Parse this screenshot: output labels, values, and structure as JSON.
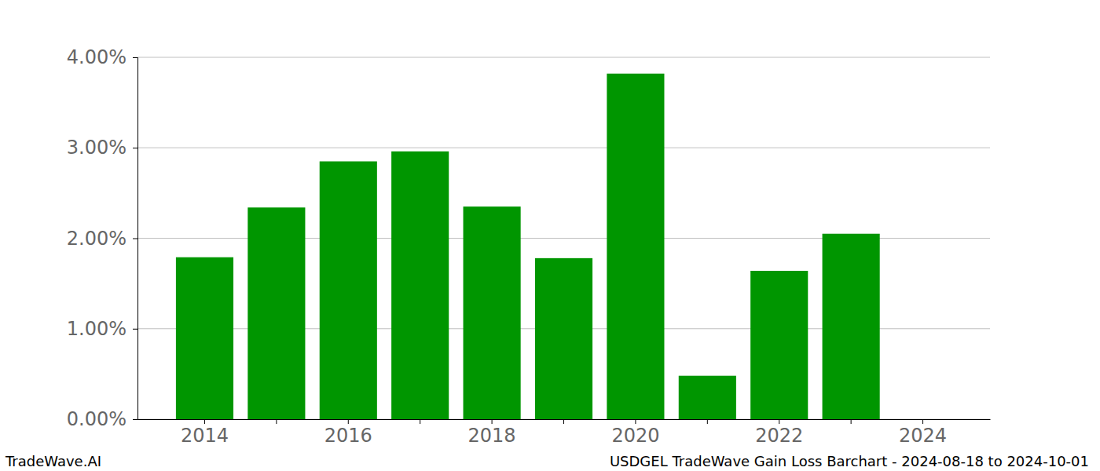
{
  "chart_data": {
    "type": "bar",
    "title": "USDGEL TradeWave Gain Loss Barchart - 2024-08-18 to 2024-10-01",
    "footer": "TradeWave.AI",
    "categories": [
      "2014",
      null,
      "2016",
      null,
      "2018",
      null,
      "2020",
      null,
      "2022",
      null,
      "2024"
    ],
    "values": [
      1.79,
      2.34,
      2.85,
      2.96,
      2.35,
      1.78,
      3.82,
      0.48,
      1.64,
      2.05,
      0
    ],
    "color": "#009600",
    "ylim": [
      0,
      4
    ],
    "yticks": [
      {
        "value": 0,
        "label": "0.00%"
      },
      {
        "value": 1,
        "label": "1.00%"
      },
      {
        "value": 2,
        "label": "2.00%"
      },
      {
        "value": 3,
        "label": "3.00%"
      },
      {
        "value": 4,
        "label": "4.00%"
      }
    ],
    "grid": true
  }
}
